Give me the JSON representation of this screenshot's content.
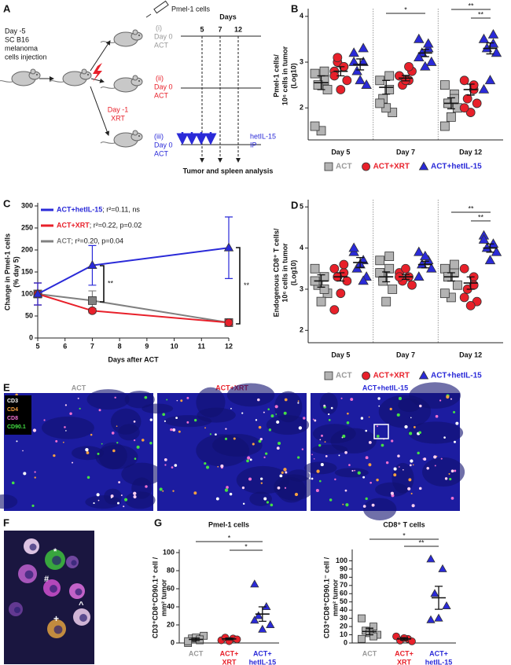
{
  "panel_labels": {
    "a": "A",
    "b": "B",
    "c": "C",
    "d": "D",
    "e": "E",
    "f": "F",
    "g": "G"
  },
  "diagram": {
    "start": [
      "Day -5",
      "SC B16",
      "melanoma",
      "cells injection"
    ],
    "pmel": "Pmel-1 cells",
    "days_title": "Days",
    "days": [
      "5",
      "7",
      "12"
    ],
    "arms": [
      [
        "(i)",
        "Day 0",
        "ACT"
      ],
      [
        "(ii)",
        "Day 0",
        "ACT"
      ],
      [
        "(iii)",
        "Day 0",
        "ACT"
      ]
    ],
    "xrt": [
      "Day -1",
      "XRT"
    ],
    "il15": [
      "hetIL-15",
      "IP"
    ],
    "analysis": "Tumor and spleen analysis"
  },
  "images": {
    "e_titles": [
      "ACT",
      "ACT+XRT",
      "ACT+hetIL-15"
    ],
    "channels": [
      "CD3",
      "CD4",
      "CD8",
      "CD90.1"
    ],
    "f_marks": [
      "*",
      "#",
      "+",
      "^"
    ]
  },
  "chart_data": [
    {
      "type": "strip",
      "ylabel": [
        "Pmel-1 cells/",
        "10⁶ cells in tumor",
        "(Log10)"
      ],
      "categories": [
        "Day 5",
        "Day 7",
        "Day 12"
      ],
      "ylim": [
        1.3,
        4.1
      ],
      "yticks": [
        2,
        3,
        4
      ],
      "legend": "bottom",
      "series": [
        {
          "name": "ACT",
          "color": "#b3b3b3",
          "marker": "square",
          "values": [
            [
              2.75,
              2.6,
              2.5,
              2.4,
              1.5,
              1.6,
              2.8
            ],
            [
              2.6,
              2.4,
              2.2,
              1.9,
              2.0,
              2.1,
              2.7
            ],
            [
              2.5,
              2.3,
              2.1,
              2.0,
              1.8,
              1.6,
              2.2
            ]
          ],
          "means": [
            2.55,
            2.45,
            2.1
          ],
          "errors": [
            0.15,
            0.15,
            0.12
          ]
        },
        {
          "name": "ACT+XRT",
          "color": "#e8202a",
          "marker": "circle",
          "values": [
            [
              2.8,
              2.9,
              3.0,
              2.6,
              2.4,
              2.7,
              2.9,
              3.1
            ],
            [
              2.7,
              2.6,
              2.5,
              2.8,
              2.6,
              2.7,
              2.9
            ],
            [
              2.6,
              2.4,
              2.2,
              2.1,
              1.9,
              2.0,
              2.5
            ]
          ],
          "means": [
            2.8,
            2.65,
            2.4
          ],
          "errors": [
            0.1,
            0.06,
            0.12
          ]
        },
        {
          "name": "ACT+hetIL-15",
          "color": "#2a2ad8",
          "marker": "triangle",
          "values": [
            [
              3.2,
              3.0,
              2.8,
              2.5,
              2.6,
              3.0,
              3.3
            ],
            [
              3.5,
              3.3,
              3.2,
              3.0,
              2.9,
              3.1,
              3.4
            ],
            [
              3.5,
              3.6,
              3.3,
              3.2,
              2.6,
              2.4,
              3.4
            ]
          ],
          "means": [
            2.95,
            3.2,
            3.3
          ],
          "errors": [
            0.12,
            0.08,
            0.12
          ]
        }
      ],
      "annotations": [
        "*",
        "**",
        "**"
      ]
    },
    {
      "type": "line",
      "ylabel": [
        "Change in Pmel-1 cells",
        "(% day 5)"
      ],
      "xlabel": "Days after ACT",
      "x": [
        5,
        7,
        12
      ],
      "xlim": [
        5,
        12
      ],
      "xticks": [
        5,
        6,
        7,
        8,
        9,
        10,
        11,
        12
      ],
      "ylim": [
        0,
        300
      ],
      "yticks": [
        0,
        50,
        100,
        150,
        200,
        250,
        300
      ],
      "series": [
        {
          "name": "ACT+hetIL-15",
          "note": "; r²=0.11, ns",
          "color": "#2a2ad8",
          "marker": "triangle",
          "values": [
            100,
            165,
            205
          ],
          "errors": [
            25,
            45,
            70
          ]
        },
        {
          "name": "ACT+XRT",
          "note": "; r²=0.22, p=0.02",
          "color": "#e8202a",
          "marker": "circle",
          "values": [
            100,
            62,
            35
          ],
          "errors": [
            25,
            5,
            6
          ]
        },
        {
          "name": "ACT",
          "note": "; r²=0.20, p=0.04",
          "color": "#808080",
          "marker": "square",
          "values": [
            100,
            85,
            35
          ],
          "errors": [
            25,
            22,
            5
          ]
        }
      ],
      "annotations": [
        "**",
        "**"
      ]
    },
    {
      "type": "strip",
      "ylabel": [
        "Endogenous CD8⁺ T cells/",
        "10⁶ cells in tumor",
        "(Log10)"
      ],
      "categories": [
        "Day 5",
        "Day 7",
        "Day 12"
      ],
      "ylim": [
        1.7,
        5.1
      ],
      "yticks": [
        2,
        3,
        4,
        5
      ],
      "legend": "bottom",
      "series": [
        {
          "name": "ACT",
          "color": "#b3b3b3",
          "marker": "square",
          "values": [
            [
              3.5,
              3.3,
              3.1,
              2.9,
              2.7,
              3.2,
              3.0
            ],
            [
              3.7,
              3.5,
              3.3,
              3.0,
              2.7,
              3.4,
              3.8,
              3.2
            ],
            [
              3.5,
              3.4,
              3.3,
              3.1,
              2.8,
              2.9,
              3.6
            ]
          ],
          "means": [
            3.2,
            3.3,
            3.3
          ],
          "errors": [
            0.15,
            0.12,
            0.1
          ]
        },
        {
          "name": "ACT+XRT",
          "color": "#e8202a",
          "marker": "circle",
          "values": [
            [
              3.5,
              3.4,
              3.3,
              3.2,
              2.9,
              2.5,
              3.6,
              3.3
            ],
            [
              3.4,
              3.3,
              3.2,
              3.1,
              3.5,
              3.3
            ],
            [
              3.5,
              3.3,
              3.0,
              2.7,
              2.6,
              2.8,
              3.1
            ]
          ],
          "means": [
            3.3,
            3.3,
            3.15
          ],
          "errors": [
            0.1,
            0.06,
            0.15
          ]
        },
        {
          "name": "ACT+hetIL-15",
          "color": "#2a2ad8",
          "marker": "triangle",
          "values": [
            [
              3.9,
              3.7,
              3.5,
              3.3,
              3.6,
              4.0,
              3.2
            ],
            [
              3.9,
              3.7,
              3.6,
              3.5,
              3.8,
              3.3
            ],
            [
              4.3,
              4.1,
              4.0,
              3.9,
              3.7,
              4.2
            ]
          ],
          "means": [
            3.65,
            3.6,
            4.0
          ],
          "errors": [
            0.12,
            0.08,
            0.1
          ]
        }
      ],
      "annotations": [
        "**",
        "**"
      ]
    },
    {
      "type": "strip",
      "title": "Pmel-1 cells",
      "ylabel": [
        "CD3⁺CD8⁺CD90.1⁺ cell /",
        "mm² tumor"
      ],
      "categories": [
        [
          "ACT"
        ],
        [
          "ACT+",
          "XRT"
        ],
        [
          "ACT+",
          "hetIL-15"
        ]
      ],
      "colors": [
        "#b3b3b3",
        "#e8202a",
        "#2a2ad8"
      ],
      "markers": [
        "square",
        "circle",
        "triangle"
      ],
      "values": [
        [
          0,
          3,
          5,
          8,
          6,
          2,
          4
        ],
        [
          3,
          5,
          6,
          4,
          2
        ],
        [
          65,
          40,
          30,
          20,
          15,
          25
        ]
      ],
      "means": [
        4,
        4.5,
        32
      ],
      "errors": [
        1.5,
        1,
        8
      ],
      "ylim": [
        0,
        100
      ],
      "yticks": [
        0,
        20,
        40,
        60,
        80,
        100
      ],
      "annotations": [
        "*",
        "*"
      ]
    },
    {
      "type": "strip",
      "title": "CD8⁺ T cells",
      "ylabel": [
        "CD3⁺CD8⁺CD90.1⁻ cell /",
        "mm² tumor"
      ],
      "categories": [
        [
          "ACT"
        ],
        [
          "ACT+",
          "XRT"
        ],
        [
          "ACT+",
          "hetIL-15"
        ]
      ],
      "colors": [
        "#b3b3b3",
        "#e8202a",
        "#2a2ad8"
      ],
      "markers": [
        "square",
        "circle",
        "triangle"
      ],
      "values": [
        [
          30,
          20,
          15,
          10,
          12,
          5,
          8
        ],
        [
          8,
          5,
          3,
          2,
          6
        ],
        [
          102,
          90,
          60,
          45,
          30,
          28
        ]
      ],
      "means": [
        14,
        5,
        55
      ],
      "errors": [
        4,
        1.5,
        14
      ],
      "ylim": [
        0,
        110
      ],
      "yticks": [
        0,
        10,
        20,
        30,
        40,
        50,
        60,
        70,
        80,
        90,
        100
      ],
      "annotations": [
        "*",
        "**"
      ]
    }
  ]
}
